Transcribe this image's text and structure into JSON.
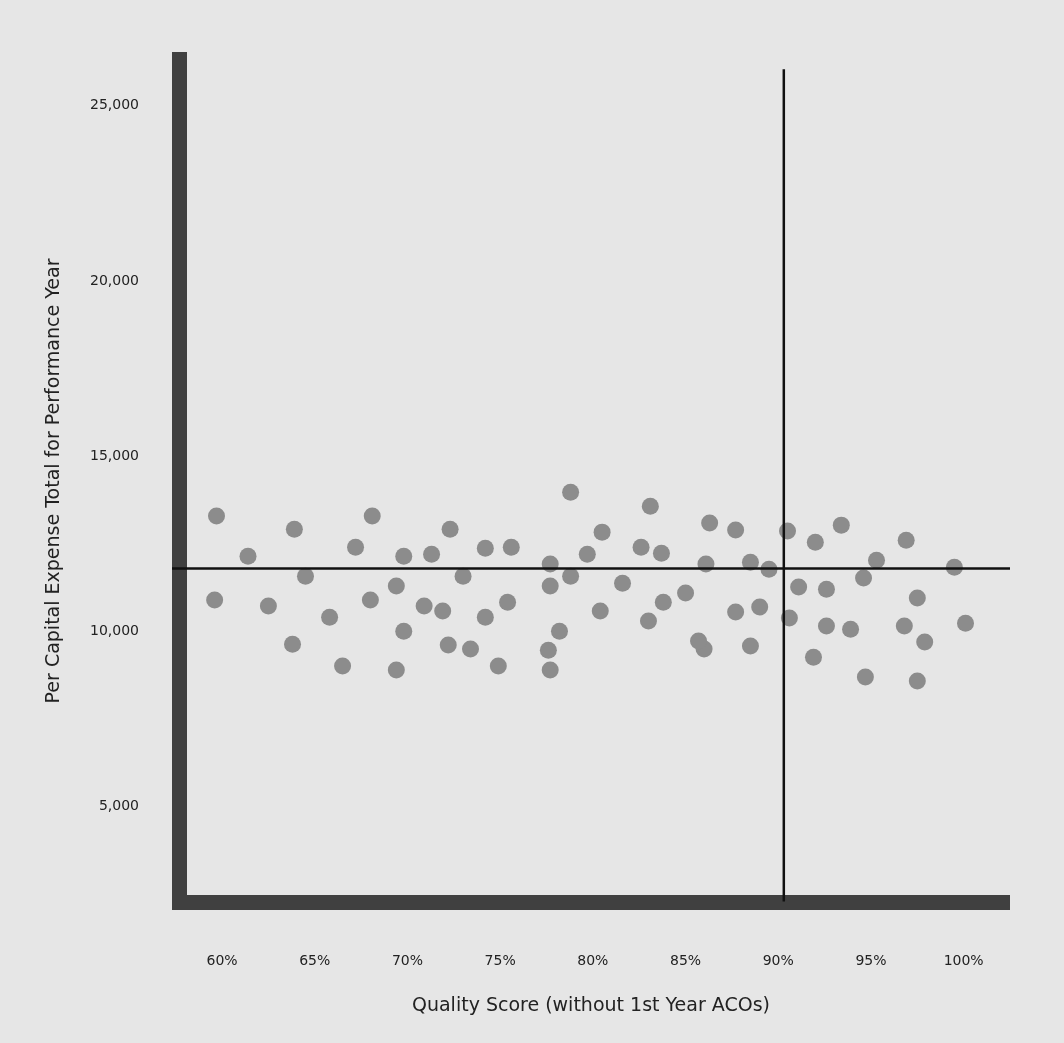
{
  "chart_data": {
    "type": "scatter",
    "xlabel": "Quality Score (without 1st Year ACOs)",
    "ylabel": "Per Capital Expense Total for Performance Year",
    "color": "#8c8c8c",
    "marker": "circle",
    "x": [
      59.7,
      61.4,
      63.9,
      64.5,
      59.6,
      62.5,
      63.8,
      68.1,
      67.2,
      65.8,
      66.5,
      68.0,
      69.4,
      69.8,
      69.4,
      69.8,
      71.3,
      72.3,
      70.9,
      71.9,
      73.0,
      72.2,
      73.4,
      74.2,
      75.6,
      74.2,
      75.4,
      74.9,
      78.8,
      77.7,
      78.8,
      77.7,
      79.7,
      78.2,
      77.6,
      77.7,
      83.1,
      80.5,
      82.6,
      83.7,
      86.3,
      87.7,
      86.1,
      88.5,
      89.5,
      90.5,
      92.0,
      93.4,
      95.3,
      96.9,
      99.5,
      94.6,
      81.6,
      91.1,
      92.6,
      97.5,
      85.0,
      83.8,
      80.4,
      83.0,
      87.7,
      89.0,
      90.6,
      92.6,
      93.9,
      96.8,
      100.1,
      97.9,
      86.0,
      85.7,
      88.5,
      91.9,
      94.7,
      97.5
    ],
    "values": [
      13250,
      12100,
      12870,
      11530,
      10850,
      10680,
      9590,
      13250,
      12360,
      10360,
      8970,
      10850,
      8850,
      12100,
      11250,
      9960,
      12160,
      12870,
      10680,
      10540,
      11530,
      9570,
      9450,
      12330,
      12360,
      10360,
      10790,
      8970,
      13930,
      11880,
      11530,
      11250,
      12160,
      9960,
      9420,
      8850,
      13530,
      12790,
      12360,
      12190,
      13050,
      12850,
      11880,
      11930,
      11730,
      12820,
      12500,
      12990,
      11990,
      12560,
      11790,
      11480,
      11330,
      11220,
      11160,
      10910,
      11050,
      10790,
      10540,
      10250,
      10510,
      10650,
      10340,
      10110,
      10020,
      10110,
      10190,
      9650,
      9450,
      9680,
      9540,
      9220,
      8650,
      8540
    ],
    "xlim": [
      57.3,
      102.5
    ],
    "xticks": [
      {
        "value": 60,
        "label": "60%"
      },
      {
        "value": 65,
        "label": "65%"
      },
      {
        "value": 70,
        "label": "70%"
      },
      {
        "value": 75,
        "label": "75%"
      },
      {
        "value": 80,
        "label": "80%"
      },
      {
        "value": 85,
        "label": "85%"
      },
      {
        "value": 90,
        "label": "90%"
      },
      {
        "value": 95,
        "label": "95%"
      },
      {
        "value": 100,
        "label": "100%"
      }
    ],
    "ylim": [
      2000,
      26500
    ],
    "yticks": [
      {
        "value": 5000,
        "label": "5,000"
      },
      {
        "value": 10000,
        "label": "10,000"
      },
      {
        "value": 15000,
        "label": "15,000"
      },
      {
        "value": 20000,
        "label": "20,000"
      },
      {
        "value": 25000,
        "label": "25,000"
      }
    ],
    "ref_lines": [
      {
        "axis": "y",
        "value": 11750,
        "color": "#111111"
      },
      {
        "axis": "x",
        "value": 90.3,
        "color": "#111111"
      }
    ]
  }
}
